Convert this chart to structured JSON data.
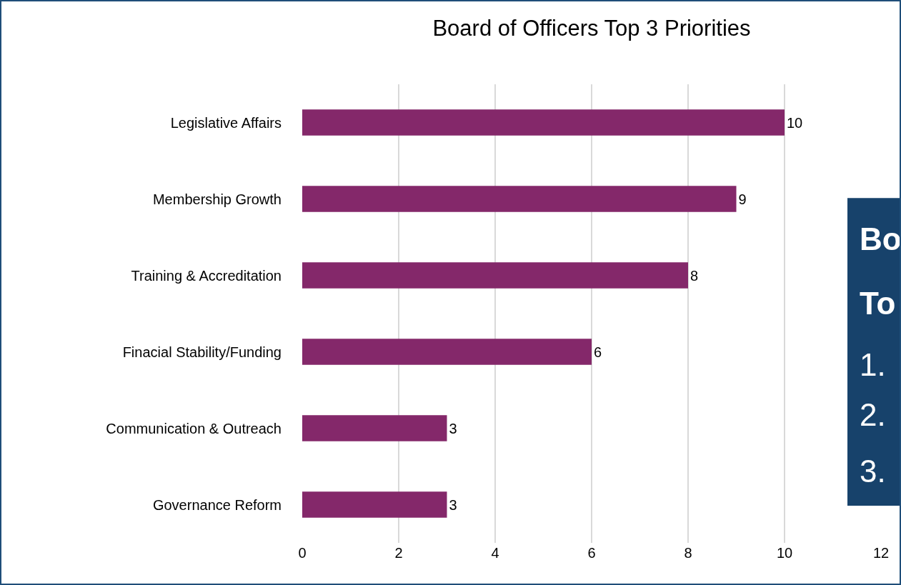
{
  "chart_data": {
    "type": "bar",
    "orientation": "horizontal",
    "title": "Board of Officers Top 3 Priorities",
    "categories": [
      "Legislative Affairs",
      "Membership Growth",
      "Training & Accreditation",
      "Finacial Stability/Funding",
      "Communication & Outreach",
      "Governance Reform"
    ],
    "values": [
      10,
      9,
      8,
      6,
      3,
      3
    ],
    "color": "#84286a",
    "xlim": [
      0,
      12
    ],
    "xticks": [
      0,
      2,
      4,
      6,
      8,
      10,
      12
    ],
    "grid": "x",
    "data_labels": true,
    "annotations": [
      "Bo",
      "To",
      "1.",
      "2.",
      "3."
    ]
  }
}
